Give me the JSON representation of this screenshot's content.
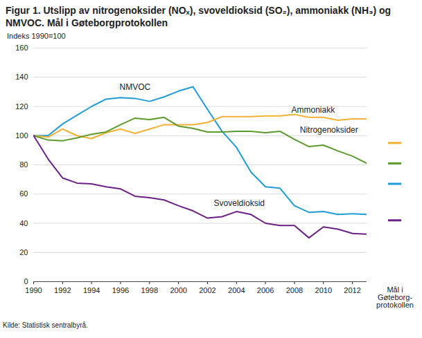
{
  "chart_data": {
    "type": "line",
    "title": "Figur 1. Utslipp av nitrogenoksider (NOₓ), svoveldioksid (SO₂), ammoniakk (NH₃) og NMVOC. Mål i Gøteborgprotokollen",
    "y_label": "Indeks 1990=100",
    "caption": "Kilde: Statistisk sentralbyrå.",
    "x": [
      1990,
      1991,
      1992,
      1993,
      1994,
      1995,
      1996,
      1997,
      1998,
      1999,
      2000,
      2001,
      2002,
      2003,
      2004,
      2005,
      2006,
      2007,
      2008,
      2009,
      2010,
      2011,
      2012,
      2013
    ],
    "xlim": [
      1990,
      2013
    ],
    "xticks": [
      1990,
      1992,
      1994,
      1996,
      1998,
      2000,
      2002,
      2004,
      2006,
      2008,
      2010,
      2012
    ],
    "ylim": [
      0,
      160
    ],
    "yticks": [
      0,
      20,
      40,
      60,
      80,
      100,
      120,
      140,
      160
    ],
    "grid": true,
    "target_label": "Mål i\nGøteborg-\nprotokollen",
    "series": [
      {
        "name": "NMVOC",
        "color": "#1f9bd7",
        "values": [
          100,
          100,
          108,
          114,
          120,
          125,
          126,
          125.5,
          123.5,
          126.5,
          130.5,
          133.5,
          118,
          103,
          92,
          75,
          65,
          64,
          52,
          47.5,
          48,
          46,
          46.5,
          46
        ],
        "target": 67
      },
      {
        "name": "Ammoniakk",
        "color": "#f2b134",
        "values": [
          100,
          99,
          104.5,
          100,
          98,
          102,
          104.5,
          101.5,
          104.5,
          107.5,
          107.5,
          107.5,
          109,
          113,
          113,
          113,
          113.5,
          113.5,
          114.5,
          112.5,
          112.5,
          110.5,
          111.5,
          111.5
        ],
        "target": 95
      },
      {
        "name": "Nitrogenoksider",
        "color": "#5b9a2b",
        "values": [
          100,
          97,
          96.5,
          98.5,
          101,
          102.5,
          107.5,
          112,
          111,
          112.5,
          106.5,
          105,
          102.5,
          102.5,
          103,
          103,
          102,
          103,
          97.5,
          92.5,
          93.5,
          89.5,
          86,
          81
        ],
        "target": 81
      },
      {
        "name": "Svoveldioksid",
        "color": "#6b1f87",
        "values": [
          100,
          84,
          71,
          67.5,
          67,
          65,
          63.5,
          58.5,
          57.5,
          56,
          52,
          48.5,
          43.5,
          44.5,
          48,
          46,
          40,
          38.5,
          38.5,
          30,
          37.5,
          36,
          33,
          32.5
        ],
        "target": 42
      }
    ]
  }
}
